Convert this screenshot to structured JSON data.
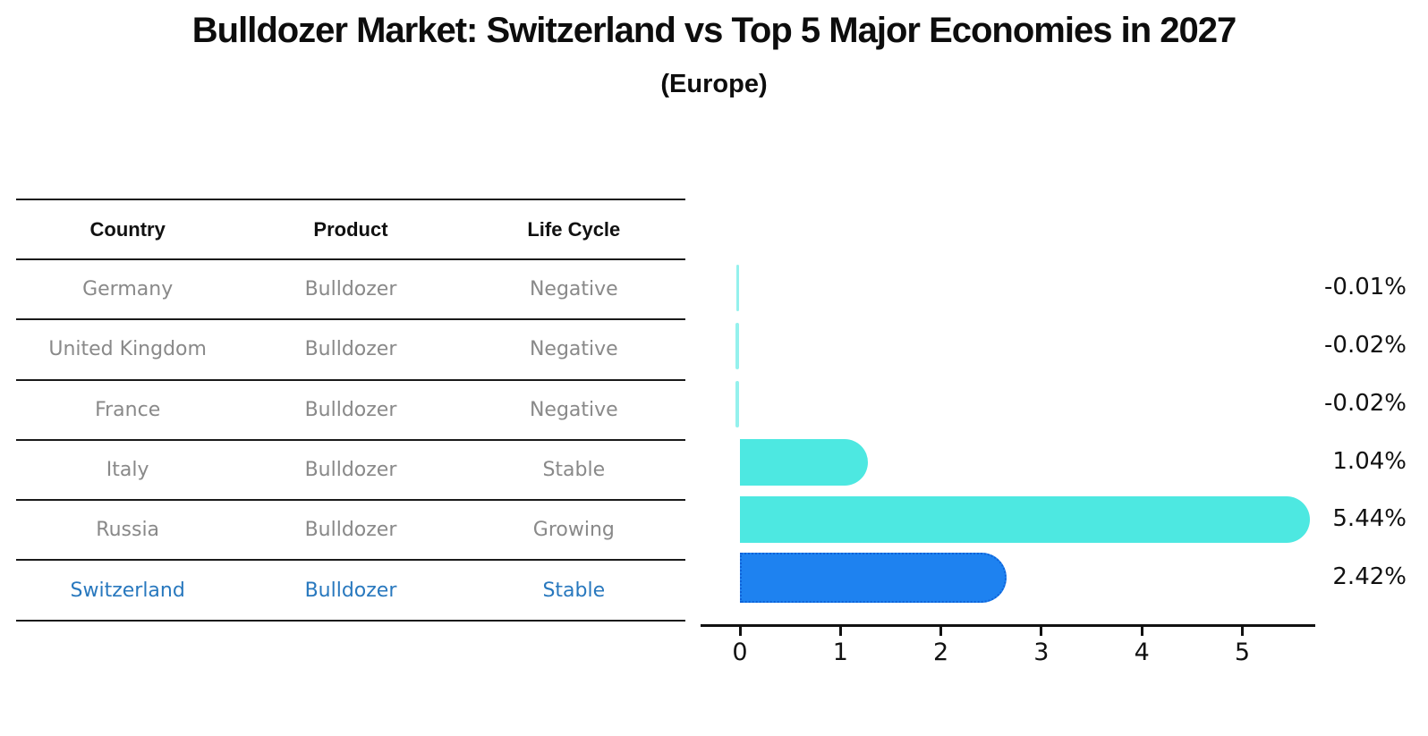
{
  "header": {
    "title": "Bulldozer Market: Switzerland vs Top 5 Major Economies in 2027",
    "subtitle": "(Europe)"
  },
  "table": {
    "headers": [
      "Country",
      "Product",
      "Life Cycle"
    ],
    "rows": [
      {
        "country": "Germany",
        "product": "Bulldozer",
        "life_cycle": "Negative",
        "highlight": false
      },
      {
        "country": "United Kingdom",
        "product": "Bulldozer",
        "life_cycle": "Negative",
        "highlight": false
      },
      {
        "country": "France",
        "product": "Bulldozer",
        "life_cycle": "Negative",
        "highlight": false
      },
      {
        "country": "Italy",
        "product": "Bulldozer",
        "life_cycle": "Stable",
        "highlight": false
      },
      {
        "country": "Russia",
        "product": "Bulldozer",
        "life_cycle": "Growing",
        "highlight": false
      },
      {
        "country": "Switzerland",
        "product": "Bulldozer",
        "life_cycle": "Stable",
        "highlight": true
      }
    ]
  },
  "chart_data": {
    "type": "bar",
    "orientation": "horizontal",
    "title": "Bulldozer Market: Switzerland vs Top 5 Major Economies in 2027",
    "subtitle": "(Europe)",
    "categories": [
      "Germany",
      "United Kingdom",
      "France",
      "Italy",
      "Russia",
      "Switzerland"
    ],
    "values": [
      -0.01,
      -0.02,
      -0.02,
      1.04,
      5.44,
      2.42
    ],
    "value_labels": [
      "-0.01%",
      "-0.02%",
      "-0.02%",
      "1.04%",
      "5.44%",
      "2.42%"
    ],
    "x_ticks": [
      "0",
      "1",
      "2",
      "3",
      "4",
      "5"
    ],
    "xlim": [
      -0.4,
      5.75
    ],
    "grid": false,
    "legend": false,
    "highlight_index": 5,
    "colors": {
      "bar": "#4DE8E1",
      "highlight_bar": "#1E82F0",
      "highlight_border": "#0E62D8",
      "axis": "#111111",
      "value_label": "#111111",
      "table_text": "#898989",
      "table_header_text": "#111111",
      "highlight_text": "#2878BE"
    }
  }
}
